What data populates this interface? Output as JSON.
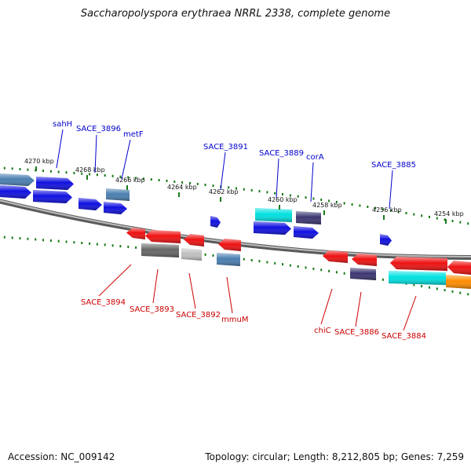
{
  "title": "Saccharopolyspora erythraea NRRL 2338, complete genome",
  "footer": {
    "accession": "Accession: NC_009142",
    "summary": "Topology: circular; Length: 8,212,805 bp; Genes: 7,259"
  },
  "colors": {
    "forward_label": "#0000cc",
    "reverse_label": "#cc0000",
    "tick_forward": "#1a7a1a",
    "backbone": "#8a8a8a",
    "blue": "#1010e0",
    "red": "#ee1111",
    "cyan": "#00e0e0",
    "steel": "#4a7fb0",
    "darkslate": "#3a3570",
    "gray": "#666666",
    "lightgray": "#c0c0c0",
    "orange": "#ff8c00"
  },
  "ticks": [
    {
      "label": "4270 kbp"
    },
    {
      "label": "4268 kbp"
    },
    {
      "label": "4266 kbp"
    },
    {
      "label": "4264 kbp"
    },
    {
      "label": "4262 kbp"
    },
    {
      "label": "4260 kbp"
    },
    {
      "label": "4258 kbp"
    },
    {
      "label": "4256 kbp"
    },
    {
      "label": "4254 kbp"
    }
  ],
  "forward_labels": [
    "sahH",
    "SACE_3896",
    "metF",
    "SACE_3891",
    "SACE_3889",
    "corA",
    "SACE_3885"
  ],
  "reverse_labels": [
    "SACE_3894",
    "SACE_3893",
    "SACE_3892",
    "mmuM",
    "chiC",
    "SACE_3886",
    "SACE_3884"
  ]
}
